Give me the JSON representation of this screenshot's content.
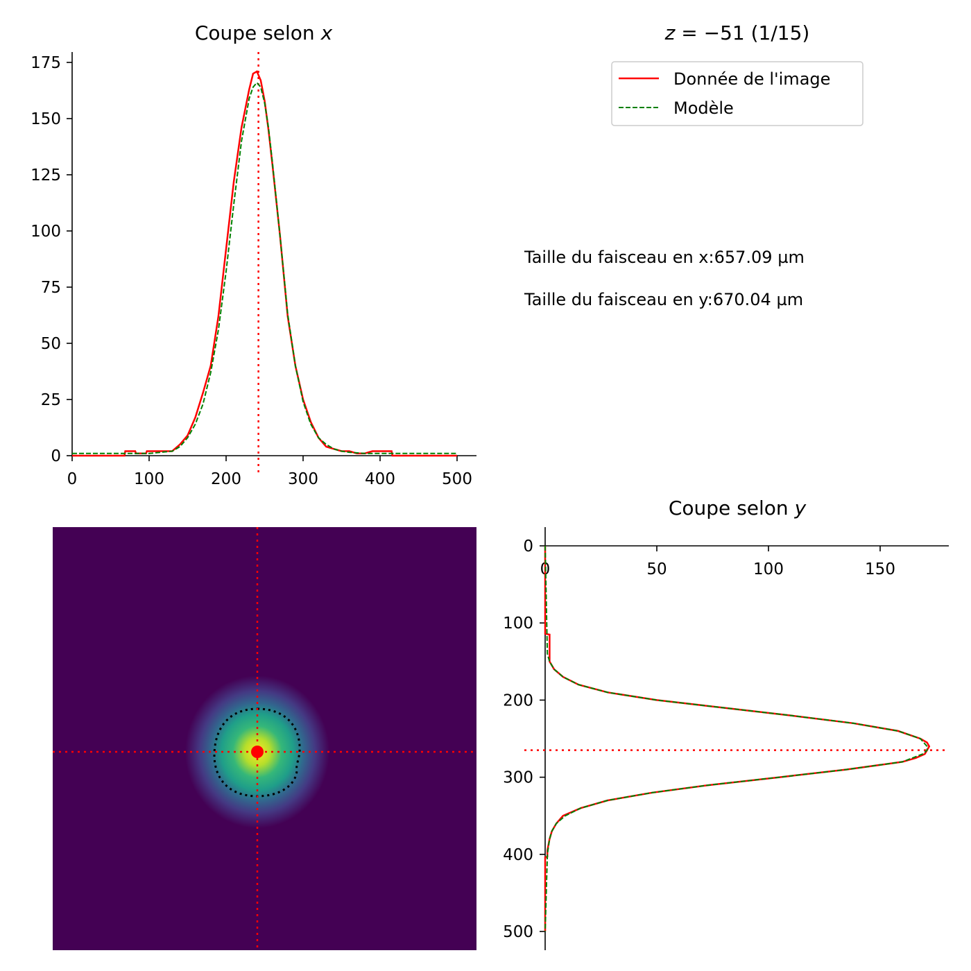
{
  "figure": {
    "header": {
      "prefix": "z",
      "value": "−51",
      "suffix": "(1/15)"
    },
    "info_lines": [
      "Taille du faisceau en x:657.09 µm",
      "Taille du faisceau en y:670.04 µm"
    ]
  },
  "chart_data": [
    {
      "type": "line",
      "panel": "x-profile",
      "title": {
        "prefix": "Coupe selon ",
        "variable": "x"
      },
      "xlabel": "",
      "ylabel": "",
      "xlim": [
        0,
        525
      ],
      "ylim": [
        0,
        180
      ],
      "xticks": [
        0,
        100,
        200,
        300,
        400,
        500
      ],
      "yticks": [
        0,
        25,
        50,
        75,
        100,
        125,
        150,
        175
      ],
      "grid": false,
      "center_marker": 242,
      "colors": {
        "data": "#ff0000",
        "model": "#008000",
        "marker": "#ff0000"
      },
      "series": [
        {
          "name": "Donnée de l'image",
          "x": [
            0,
            68,
            69,
            82,
            83,
            96,
            97,
            130,
            140,
            150,
            160,
            170,
            180,
            190,
            200,
            210,
            220,
            230,
            235,
            240,
            245,
            250,
            255,
            260,
            270,
            280,
            290,
            300,
            310,
            320,
            330,
            340,
            350,
            360,
            370,
            380,
            390,
            400,
            410,
            415,
            416,
            500
          ],
          "y": [
            0,
            0,
            2,
            2,
            1,
            1,
            2,
            2,
            5,
            9,
            17,
            28,
            40,
            62,
            92,
            122,
            146,
            163,
            170,
            171,
            167,
            158,
            145,
            130,
            98,
            62,
            40,
            25,
            15,
            8,
            4,
            3,
            2,
            2,
            1,
            1,
            2,
            2,
            2,
            2,
            0,
            0
          ]
        },
        {
          "name": "Modèle",
          "x": [
            0,
            100,
            130,
            140,
            150,
            160,
            170,
            180,
            190,
            200,
            210,
            220,
            230,
            235,
            240,
            245,
            250,
            255,
            260,
            270,
            280,
            290,
            300,
            310,
            320,
            330,
            340,
            350,
            360,
            380,
            500
          ],
          "y": [
            1,
            1,
            2,
            4,
            8,
            14,
            23,
            37,
            56,
            82,
            112,
            140,
            159,
            164,
            166,
            164,
            157,
            146,
            131,
            98,
            63,
            40,
            24,
            14,
            8,
            5,
            3,
            2,
            1.5,
            1,
            1
          ]
        }
      ]
    },
    {
      "type": "heatmap",
      "panel": "beam-image",
      "colormap": "viridis",
      "center": {
        "x": 242,
        "y": 265
      },
      "colors": {
        "crosshair": "#ff0000",
        "contour": "#000000",
        "center": "#ff0000"
      }
    },
    {
      "type": "line",
      "panel": "y-profile",
      "orientation": "horizontal",
      "title": {
        "prefix": "Coupe selon ",
        "variable": "y"
      },
      "xlabel": "",
      "ylabel": "",
      "xlim": [
        0,
        182
      ],
      "ylim": [
        0,
        520
      ],
      "y_inverted": true,
      "xticks": [
        0,
        50,
        100,
        150
      ],
      "yticks": [
        0,
        100,
        200,
        300,
        400,
        500
      ],
      "grid": false,
      "center_marker": 265,
      "colors": {
        "data": "#ff0000",
        "model": "#008000",
        "marker": "#ff0000"
      },
      "series": [
        {
          "name": "Donnée de l'image",
          "y": [
            0,
            114,
            115,
            150,
            155,
            160,
            170,
            180,
            190,
            200,
            210,
            220,
            230,
            240,
            250,
            255,
            260,
            265,
            270,
            275,
            280,
            290,
            300,
            310,
            320,
            330,
            340,
            350,
            360,
            370,
            380,
            395,
            403,
            404,
            500
          ],
          "x": [
            0,
            0,
            2,
            2,
            3,
            4,
            8,
            15,
            28,
            50,
            80,
            110,
            138,
            158,
            168,
            171,
            172,
            171,
            170,
            166,
            160,
            135,
            105,
            74,
            48,
            28,
            16,
            8,
            5,
            3,
            2,
            1,
            1,
            0,
            0
          ]
        },
        {
          "name": "Modèle",
          "y": [
            0,
            140,
            150,
            160,
            170,
            180,
            190,
            200,
            210,
            220,
            230,
            240,
            250,
            260,
            265,
            270,
            280,
            290,
            300,
            310,
            320,
            330,
            340,
            350,
            360,
            370,
            380,
            400,
            500
          ],
          "x": [
            0,
            1,
            2,
            4,
            8,
            15,
            28,
            50,
            80,
            110,
            138,
            158,
            168,
            171,
            171,
            169,
            160,
            135,
            105,
            74,
            48,
            28,
            16,
            9,
            5,
            3,
            2,
            1,
            0
          ]
        }
      ]
    }
  ]
}
